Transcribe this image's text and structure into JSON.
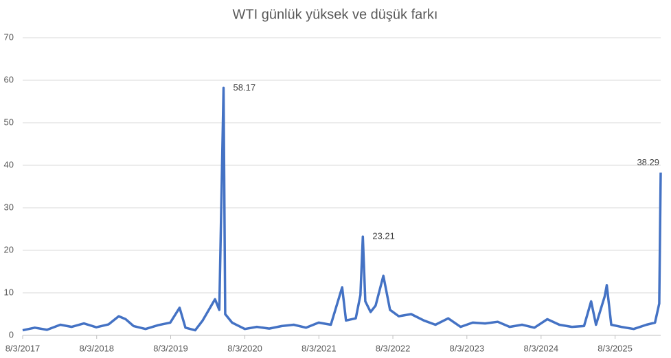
{
  "chart_data": {
    "type": "line",
    "title": "WTI günlük yüksek ve düşük farkı",
    "x": [
      "8/3/2017",
      "10/2/2017",
      "12/1/2017",
      "2/5/2018",
      "4/2/2018",
      "6/1/2018",
      "8/1/2018",
      "10/1/2018",
      "11/20/2018",
      "12/24/2018",
      "2/1/2019",
      "4/1/2019",
      "6/3/2019",
      "8/1/2019",
      "9/16/2019",
      "10/15/2019",
      "12/2/2019",
      "1/8/2020",
      "3/9/2020",
      "3/30/2020",
      "4/20/2020",
      "4/28/2020",
      "6/1/2020",
      "8/3/2020",
      "10/1/2020",
      "12/1/2020",
      "2/1/2021",
      "4/1/2021",
      "6/1/2021",
      "8/2/2021",
      "10/1/2021",
      "11/26/2021",
      "12/15/2021",
      "2/1/2022",
      "2/24/2022",
      "3/8/2022",
      "3/20/2022",
      "4/15/2022",
      "5/10/2022",
      "6/17/2022",
      "7/20/2022",
      "9/1/2022",
      "11/1/2022",
      "1/3/2023",
      "3/1/2023",
      "5/3/2023",
      "7/3/2023",
      "9/1/2023",
      "11/1/2023",
      "1/2/2024",
      "3/1/2024",
      "5/1/2024",
      "7/1/2024",
      "9/3/2024",
      "11/1/2024",
      "1/2/2025",
      "3/3/2025",
      "4/7/2025",
      "5/1/2025",
      "6/13/2025",
      "6/23/2025",
      "7/15/2025",
      "9/2/2025",
      "11/3/2025",
      "1/5/2026",
      "2/16/2026",
      "3/9/2026",
      "3/16/2026"
    ],
    "values": [
      1.2,
      1.8,
      1.3,
      2.5,
      2.0,
      2.8,
      1.9,
      2.6,
      4.5,
      3.8,
      2.2,
      1.5,
      2.4,
      3.0,
      6.5,
      1.8,
      1.2,
      3.5,
      8.5,
      6.0,
      58.17,
      5.0,
      3.0,
      1.5,
      2.0,
      1.6,
      2.2,
      2.5,
      1.8,
      3.0,
      2.5,
      11.3,
      3.5,
      4.0,
      9.5,
      23.21,
      8.0,
      5.5,
      7.0,
      14.0,
      6.0,
      4.5,
      5.0,
      3.5,
      2.5,
      4.0,
      2.0,
      3.0,
      2.8,
      3.2,
      2.0,
      2.5,
      1.8,
      3.8,
      2.5,
      2.0,
      2.2,
      8.0,
      2.5,
      9.2,
      11.8,
      2.5,
      2.0,
      1.5,
      2.5,
      3.0,
      7.5,
      38.29
    ],
    "value_labels": [
      null,
      null,
      null,
      null,
      null,
      null,
      null,
      null,
      null,
      null,
      null,
      null,
      null,
      null,
      null,
      null,
      null,
      null,
      null,
      null,
      "58.17",
      null,
      null,
      null,
      null,
      null,
      null,
      null,
      null,
      null,
      null,
      null,
      null,
      null,
      null,
      "23.21",
      null,
      null,
      null,
      null,
      null,
      null,
      null,
      null,
      null,
      null,
      null,
      null,
      null,
      null,
      null,
      null,
      null,
      null,
      null,
      null,
      null,
      null,
      null,
      null,
      null,
      null,
      null,
      null,
      null,
      null,
      null,
      "38.29"
    ],
    "color": "#4472c4",
    "xlim": [
      "8/3/2017",
      "3/16/2026"
    ],
    "xticks": [
      "8/3/2017",
      "8/3/2018",
      "8/3/2019",
      "8/3/2020",
      "8/3/2021",
      "8/3/2022",
      "8/3/2023",
      "8/3/2024",
      "8/3/2025"
    ],
    "ylim": [
      0,
      70
    ],
    "yticks": [
      0,
      10,
      20,
      30,
      40,
      50,
      60,
      70
    ],
    "grid": true
  }
}
